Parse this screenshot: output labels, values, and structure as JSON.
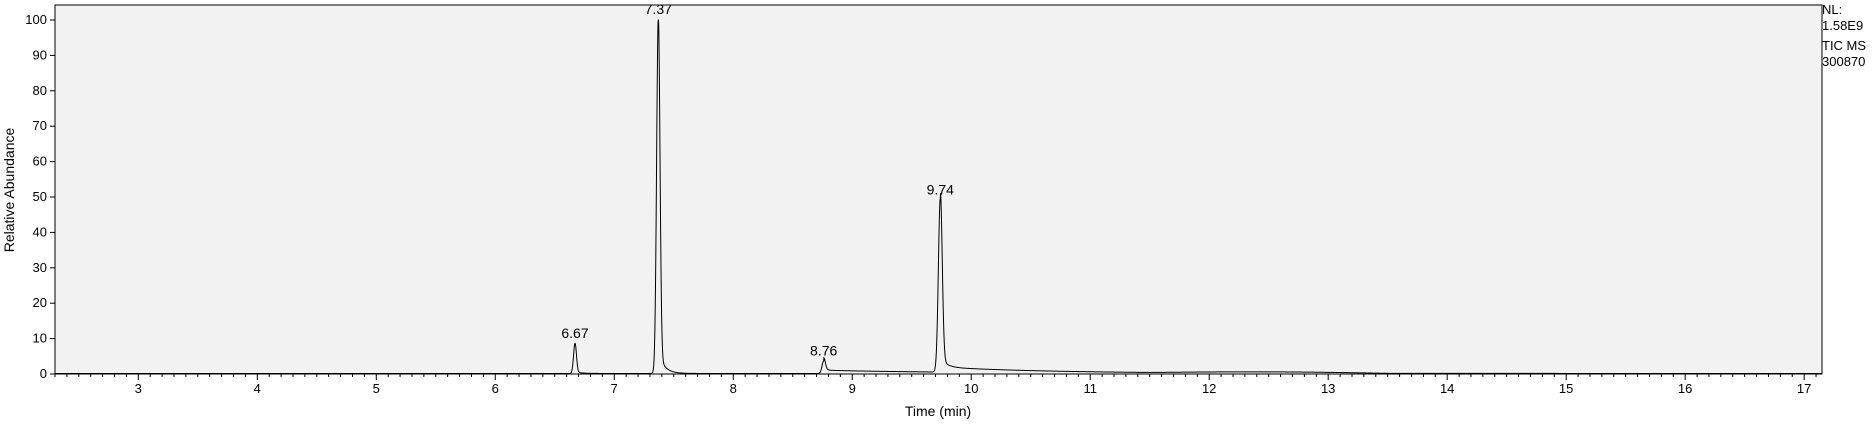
{
  "chart_data": {
    "type": "line",
    "title": "",
    "xlabel": "Time (min)",
    "ylabel": "Relative Abundance",
    "xlim": [
      2.3,
      17.15
    ],
    "ylim": [
      0,
      100
    ],
    "x_ticks": [
      "3",
      "4",
      "5",
      "6",
      "7",
      "8",
      "9",
      "10",
      "11",
      "12",
      "13",
      "14",
      "15",
      "16",
      "17"
    ],
    "y_ticks": [
      "0",
      "10",
      "20",
      "30",
      "40",
      "50",
      "60",
      "70",
      "80",
      "90",
      "100"
    ],
    "grid": false,
    "background": "#f2f2f2",
    "line_color": "#000000",
    "peaks": [
      {
        "rt": 6.67,
        "label": "6.67",
        "height": 8.5,
        "width": 0.012
      },
      {
        "rt": 7.37,
        "label": "7.37",
        "height": 100,
        "width": 0.014
      },
      {
        "rt": 8.76,
        "label": "8.76",
        "height": 3.5,
        "width": 0.014
      },
      {
        "rt": 9.74,
        "label": "9.74",
        "height": 49,
        "width": 0.016
      }
    ],
    "info": [
      "NL:",
      "1.58E9",
      "TIC MS",
      "300870"
    ]
  }
}
